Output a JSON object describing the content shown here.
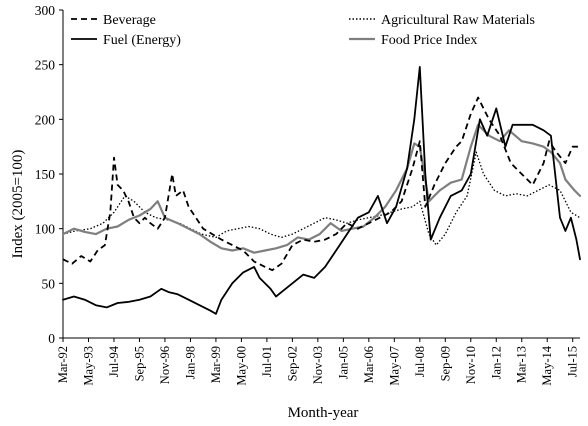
{
  "chart_data": {
    "type": "line",
    "title": "",
    "xlabel": "Month-year",
    "ylabel": "Index (2005=100)",
    "ylim": [
      0,
      300
    ],
    "yticks": [
      0,
      50,
      100,
      150,
      200,
      250,
      300
    ],
    "xlim": [
      "1992-03",
      "2015-11"
    ],
    "xtick_labels": [
      "Mar-92",
      "May-93",
      "Jul-94",
      "Sep-95",
      "Nov-96",
      "Jan-98",
      "Mar-99",
      "May-00",
      "Jul-01",
      "Sep-02",
      "Nov-03",
      "Jan-05",
      "Mar-06",
      "May-07",
      "Jul-08",
      "Sep-09",
      "Nov-10",
      "Jan-12",
      "Mar-13",
      "May-14",
      "Jul-15"
    ],
    "xtick_values": [
      "1992-03",
      "1993-05",
      "1994-07",
      "1995-09",
      "1996-11",
      "1998-01",
      "1999-03",
      "2000-05",
      "2001-07",
      "2002-09",
      "2003-11",
      "2005-01",
      "2006-03",
      "2007-05",
      "2008-07",
      "2009-09",
      "2010-11",
      "2012-01",
      "2013-03",
      "2014-05",
      "2015-07"
    ],
    "grid": false,
    "legend_position": "top",
    "series": [
      {
        "name": "Beverage",
        "color": "#000000",
        "style": "dashed",
        "points": [
          [
            "1992-03",
            72
          ],
          [
            "1992-08",
            68
          ],
          [
            "1993-01",
            75
          ],
          [
            "1993-06",
            70
          ],
          [
            "1993-10",
            80
          ],
          [
            "1994-02",
            85
          ],
          [
            "1994-05",
            115
          ],
          [
            "1994-07",
            165
          ],
          [
            "1994-09",
            140
          ],
          [
            "1994-12",
            135
          ],
          [
            "1995-03",
            125
          ],
          [
            "1995-06",
            110
          ],
          [
            "1995-09",
            105
          ],
          [
            "1995-12",
            110
          ],
          [
            "1996-03",
            105
          ],
          [
            "1996-07",
            100
          ],
          [
            "1996-11",
            110
          ],
          [
            "1997-03",
            150
          ],
          [
            "1997-05",
            130
          ],
          [
            "1997-09",
            135
          ],
          [
            "1997-12",
            120
          ],
          [
            "1998-04",
            110
          ],
          [
            "1998-08",
            100
          ],
          [
            "1999-01",
            95
          ],
          [
            "1999-06",
            90
          ],
          [
            "1999-12",
            85
          ],
          [
            "2000-06",
            80
          ],
          [
            "2000-12",
            70
          ],
          [
            "2001-06",
            65
          ],
          [
            "2001-10",
            62
          ],
          [
            "2002-03",
            68
          ],
          [
            "2002-09",
            85
          ],
          [
            "2003-03",
            90
          ],
          [
            "2003-09",
            88
          ],
          [
            "2004-03",
            90
          ],
          [
            "2004-09",
            95
          ],
          [
            "2005-03",
            105
          ],
          [
            "2005-09",
            100
          ],
          [
            "2006-03",
            105
          ],
          [
            "2006-09",
            110
          ],
          [
            "2007-03",
            115
          ],
          [
            "2007-09",
            125
          ],
          [
            "2008-03",
            155
          ],
          [
            "2008-07",
            180
          ],
          [
            "2008-10",
            120
          ],
          [
            "2009-03",
            140
          ],
          [
            "2009-09",
            160
          ],
          [
            "2010-03",
            175
          ],
          [
            "2010-06",
            180
          ],
          [
            "2010-11",
            205
          ],
          [
            "2011-03",
            220
          ],
          [
            "2011-06",
            210
          ],
          [
            "2011-09",
            200
          ],
          [
            "2012-03",
            185
          ],
          [
            "2012-09",
            160
          ],
          [
            "2013-03",
            150
          ],
          [
            "2013-09",
            140
          ],
          [
            "2014-03",
            160
          ],
          [
            "2014-06",
            180
          ],
          [
            "2014-10",
            170
          ],
          [
            "2015-03",
            160
          ],
          [
            "2015-07",
            175
          ],
          [
            "2015-11",
            175
          ]
        ]
      },
      {
        "name": "Agricultural Raw Materials",
        "color": "#000000",
        "style": "dotted",
        "points": [
          [
            "1992-03",
            95
          ],
          [
            "1992-10",
            98
          ],
          [
            "1993-06",
            100
          ],
          [
            "1994-01",
            105
          ],
          [
            "1994-07",
            115
          ],
          [
            "1995-01",
            130
          ],
          [
            "1995-06",
            125
          ],
          [
            "1995-12",
            115
          ],
          [
            "1996-06",
            110
          ],
          [
            "1997-01",
            108
          ],
          [
            "1997-07",
            105
          ],
          [
            "1998-01",
            100
          ],
          [
            "1998-07",
            95
          ],
          [
            "1999-03",
            92
          ],
          [
            "1999-09",
            98
          ],
          [
            "2000-03",
            100
          ],
          [
            "2000-09",
            102
          ],
          [
            "2001-03",
            100
          ],
          [
            "2001-09",
            95
          ],
          [
            "2002-03",
            92
          ],
          [
            "2002-09",
            95
          ],
          [
            "2003-03",
            100
          ],
          [
            "2003-09",
            105
          ],
          [
            "2004-03",
            110
          ],
          [
            "2004-09",
            108
          ],
          [
            "2005-03",
            105
          ],
          [
            "2005-09",
            108
          ],
          [
            "2006-03",
            110
          ],
          [
            "2006-09",
            112
          ],
          [
            "2007-03",
            115
          ],
          [
            "2007-09",
            118
          ],
          [
            "2008-03",
            120
          ],
          [
            "2008-07",
            125
          ],
          [
            "2008-12",
            95
          ],
          [
            "2009-04",
            85
          ],
          [
            "2009-09",
            95
          ],
          [
            "2010-03",
            115
          ],
          [
            "2010-09",
            130
          ],
          [
            "2011-02",
            170
          ],
          [
            "2011-06",
            150
          ],
          [
            "2011-12",
            135
          ],
          [
            "2012-06",
            130
          ],
          [
            "2012-12",
            132
          ],
          [
            "2013-06",
            130
          ],
          [
            "2013-12",
            135
          ],
          [
            "2014-06",
            140
          ],
          [
            "2014-12",
            135
          ],
          [
            "2015-06",
            115
          ],
          [
            "2015-11",
            110
          ]
        ]
      },
      {
        "name": "Fuel (Energy)",
        "color": "#000000",
        "style": "solid",
        "points": [
          [
            "1992-03",
            35
          ],
          [
            "1992-09",
            38
          ],
          [
            "1993-03",
            35
          ],
          [
            "1993-09",
            30
          ],
          [
            "1994-03",
            28
          ],
          [
            "1994-09",
            32
          ],
          [
            "1995-03",
            33
          ],
          [
            "1995-09",
            35
          ],
          [
            "1996-03",
            38
          ],
          [
            "1996-09",
            45
          ],
          [
            "1997-01",
            42
          ],
          [
            "1997-06",
            40
          ],
          [
            "1997-12",
            35
          ],
          [
            "1998-06",
            30
          ],
          [
            "1998-12",
            25
          ],
          [
            "1999-03",
            22
          ],
          [
            "1999-06",
            35
          ],
          [
            "1999-12",
            50
          ],
          [
            "2000-06",
            60
          ],
          [
            "2000-12",
            65
          ],
          [
            "2001-03",
            55
          ],
          [
            "2001-09",
            45
          ],
          [
            "2001-12",
            38
          ],
          [
            "2002-03",
            42
          ],
          [
            "2002-09",
            50
          ],
          [
            "2003-03",
            58
          ],
          [
            "2003-09",
            55
          ],
          [
            "2004-03",
            65
          ],
          [
            "2004-09",
            80
          ],
          [
            "2005-03",
            95
          ],
          [
            "2005-09",
            110
          ],
          [
            "2006-03",
            115
          ],
          [
            "2006-08",
            130
          ],
          [
            "2007-01",
            105
          ],
          [
            "2007-06",
            120
          ],
          [
            "2007-12",
            155
          ],
          [
            "2008-04",
            200
          ],
          [
            "2008-07",
            248
          ],
          [
            "2008-10",
            150
          ],
          [
            "2009-01",
            90
          ],
          [
            "2009-06",
            110
          ],
          [
            "2009-12",
            130
          ],
          [
            "2010-06",
            135
          ],
          [
            "2010-11",
            150
          ],
          [
            "2011-04",
            200
          ],
          [
            "2011-08",
            185
          ],
          [
            "2012-01",
            210
          ],
          [
            "2012-06",
            175
          ],
          [
            "2012-10",
            195
          ],
          [
            "2013-03",
            195
          ],
          [
            "2013-09",
            195
          ],
          [
            "2014-03",
            190
          ],
          [
            "2014-07",
            185
          ],
          [
            "2014-12",
            110
          ],
          [
            "2015-03",
            98
          ],
          [
            "2015-06",
            110
          ],
          [
            "2015-09",
            90
          ],
          [
            "2015-11",
            72
          ]
        ]
      },
      {
        "name": "Food Price Index",
        "color": "#7f7f7f",
        "style": "solid",
        "points": [
          [
            "1992-03",
            95
          ],
          [
            "1992-09",
            100
          ],
          [
            "1993-03",
            97
          ],
          [
            "1993-09",
            95
          ],
          [
            "1994-03",
            100
          ],
          [
            "1994-09",
            102
          ],
          [
            "1995-03",
            108
          ],
          [
            "1995-09",
            112
          ],
          [
            "1996-03",
            118
          ],
          [
            "1996-07",
            125
          ],
          [
            "1996-11",
            110
          ],
          [
            "1997-06",
            105
          ],
          [
            "1997-12",
            100
          ],
          [
            "1998-06",
            95
          ],
          [
            "1998-12",
            88
          ],
          [
            "1999-06",
            82
          ],
          [
            "1999-12",
            80
          ],
          [
            "2000-06",
            82
          ],
          [
            "2000-12",
            78
          ],
          [
            "2001-06",
            80
          ],
          [
            "2001-12",
            82
          ],
          [
            "2002-06",
            85
          ],
          [
            "2002-12",
            92
          ],
          [
            "2003-06",
            90
          ],
          [
            "2003-12",
            95
          ],
          [
            "2004-06",
            105
          ],
          [
            "2004-12",
            98
          ],
          [
            "2005-06",
            100
          ],
          [
            "2005-12",
            102
          ],
          [
            "2006-06",
            110
          ],
          [
            "2006-12",
            120
          ],
          [
            "2007-06",
            135
          ],
          [
            "2007-12",
            155
          ],
          [
            "2008-04",
            178
          ],
          [
            "2008-07",
            175
          ],
          [
            "2008-12",
            125
          ],
          [
            "2009-06",
            135
          ],
          [
            "2009-12",
            142
          ],
          [
            "2010-06",
            145
          ],
          [
            "2010-11",
            175
          ],
          [
            "2011-03",
            195
          ],
          [
            "2011-09",
            185
          ],
          [
            "2012-03",
            180
          ],
          [
            "2012-08",
            190
          ],
          [
            "2013-03",
            180
          ],
          [
            "2013-09",
            178
          ],
          [
            "2014-03",
            175
          ],
          [
            "2014-07",
            170
          ],
          [
            "2014-12",
            160
          ],
          [
            "2015-03",
            145
          ],
          [
            "2015-08",
            135
          ],
          [
            "2015-11",
            130
          ]
        ]
      }
    ]
  }
}
